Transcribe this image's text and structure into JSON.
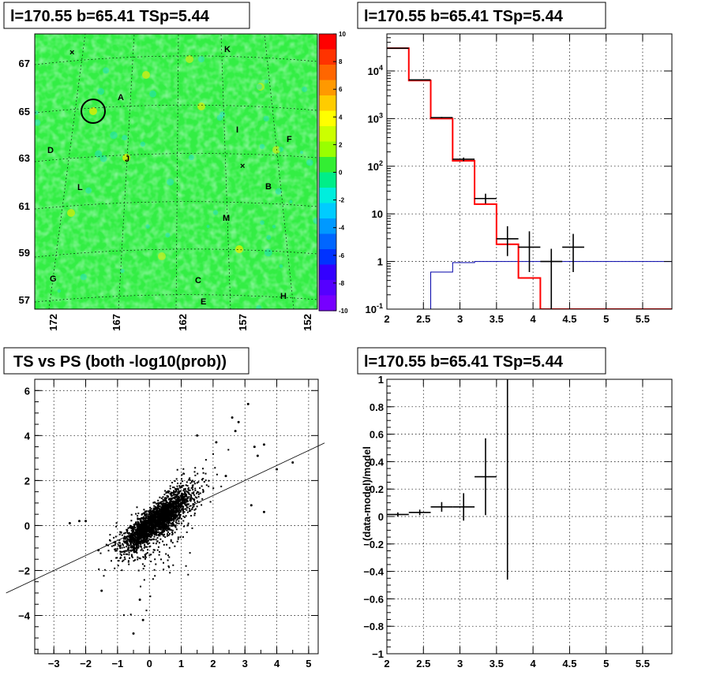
{
  "chart_data": [
    {
      "type": "heatmap",
      "title": "l=170.55 b=65.41 TSp=5.44",
      "x_ticks": [
        "172",
        "167",
        "162",
        "157",
        "152"
      ],
      "y_ticks": [
        "67",
        "65",
        "63",
        "61",
        "59",
        "57"
      ],
      "colorbar_ticks": [
        "10",
        "8",
        "6",
        "4",
        "2",
        "0",
        "-2",
        "-4",
        "-6",
        "-8",
        "-10"
      ],
      "colorbar_range": [
        -10,
        10
      ],
      "source_labels": [
        "K",
        "A",
        "I",
        "F",
        "D",
        "J",
        "B",
        "L",
        "M",
        "G",
        "C",
        "H",
        "E"
      ],
      "colors": {
        "background": "#33ee33",
        "high": "#ff0000",
        "low": "#7700ff"
      }
    },
    {
      "type": "line",
      "title": "l=170.55 b=65.41 TSp=5.44",
      "log_y": true,
      "xlim": [
        2,
        5.9
      ],
      "ylim": [
        0.1,
        60000
      ],
      "x_ticks": [
        "2",
        "2.5",
        "3",
        "3.5",
        "4",
        "4.5",
        "5",
        "5.5"
      ],
      "y_ticks": [
        "10^-1",
        "1",
        "10",
        "10^2",
        "10^3",
        "10^4"
      ],
      "series": [
        {
          "kind": "data-points",
          "color": "#000000",
          "points": [
            [
              2.15,
              30000
            ],
            [
              2.45,
              6500
            ],
            [
              2.75,
              1050
            ],
            [
              3.05,
              140
            ],
            [
              3.35,
              21
            ],
            [
              3.65,
              3
            ],
            [
              3.95,
              2
            ],
            [
              4.25,
              1
            ],
            [
              4.55,
              2
            ]
          ],
          "xerr": 0.15,
          "yerr_low": [
            200,
            80,
            32,
            12,
            4.5,
            1.7,
            1.4,
            0.92,
            1.4
          ],
          "yerr_high": [
            200,
            80,
            32,
            12,
            5.5,
            2.5,
            2.3,
            0.85,
            1.8
          ]
        },
        {
          "kind": "model-histogram",
          "color": "#ff0000",
          "edges": [
            2.0,
            2.3,
            2.6,
            2.9,
            3.2,
            3.5,
            3.8,
            4.1,
            4.4,
            5.9
          ],
          "values": [
            30000,
            6300,
            1000,
            130,
            16,
            2.3,
            0.45,
            0.1,
            0.1
          ]
        },
        {
          "kind": "background-histogram",
          "color": "#0000aa",
          "edges": [
            2.0,
            2.3,
            2.6,
            2.9,
            3.2,
            3.5,
            3.8,
            4.1,
            4.4,
            5.9
          ],
          "values": [
            0.09,
            0.1,
            0.6,
            0.95,
            1.0,
            1.0,
            1.0,
            1.0,
            1.0
          ]
        }
      ]
    },
    {
      "type": "scatter",
      "title": "TS vs PS (both -log10(prob))",
      "xlim": [
        -3.6,
        5.3
      ],
      "ylim": [
        -5.7,
        6.5
      ],
      "x_ticks": [
        "−3",
        "−2",
        "−1",
        "0",
        "1",
        "2",
        "3",
        "4",
        "5"
      ],
      "y_ticks": [
        "−4",
        "−2",
        "0",
        "2",
        "4",
        "6"
      ],
      "reference_line": {
        "slope": 0.667,
        "intercept": 0
      },
      "cluster": {
        "slope": 1.05,
        "scatter": 0.3,
        "core_n": 9000
      },
      "outliers": [
        [
          3.1,
          5.4
        ],
        [
          2.6,
          4.8
        ],
        [
          2.8,
          4.6
        ],
        [
          3.3,
          3.5
        ],
        [
          3.6,
          3.6
        ],
        [
          3.4,
          3.1
        ],
        [
          4.0,
          2.5
        ],
        [
          4.5,
          2.8
        ],
        [
          3.2,
          0.9
        ],
        [
          3.6,
          0.6
        ],
        [
          -2.5,
          0.1
        ],
        [
          -2.2,
          0.2
        ],
        [
          -1.5,
          -2.9
        ],
        [
          -0.5,
          -4.8
        ],
        [
          -0.2,
          -4.2
        ],
        [
          -0.3,
          -3.3
        ],
        [
          -2.0,
          0.2
        ],
        [
          -1.6,
          -1.1
        ],
        [
          2.4,
          2.2
        ],
        [
          2.1,
          3.7
        ],
        [
          2.7,
          4.2
        ],
        [
          1.5,
          4.0
        ]
      ]
    },
    {
      "type": "line",
      "title": "l=170.55 b=65.41 TSp=5.44",
      "ylabel": "(data-model)/model",
      "xlim": [
        2,
        5.9
      ],
      "ylim": [
        -1,
        1
      ],
      "x_ticks": [
        "2",
        "2.5",
        "3",
        "3.5",
        "4",
        "4.5",
        "5",
        "5.5"
      ],
      "y_ticks": [
        "−1",
        "−0.8",
        "−0.6",
        "−0.4",
        "−0.2",
        "0",
        "0.2",
        "0.4",
        "0.6",
        "0.8",
        "1"
      ],
      "points": [
        [
          2.15,
          0.015
        ],
        [
          2.45,
          0.03
        ],
        [
          2.75,
          0.07
        ],
        [
          3.05,
          0.07
        ],
        [
          3.35,
          0.29
        ],
        [
          3.65,
          2.5
        ]
      ],
      "xerr": 0.15,
      "yerr": [
        0.015,
        0.02,
        0.035,
        0.1,
        0.28,
        3.0
      ]
    }
  ]
}
